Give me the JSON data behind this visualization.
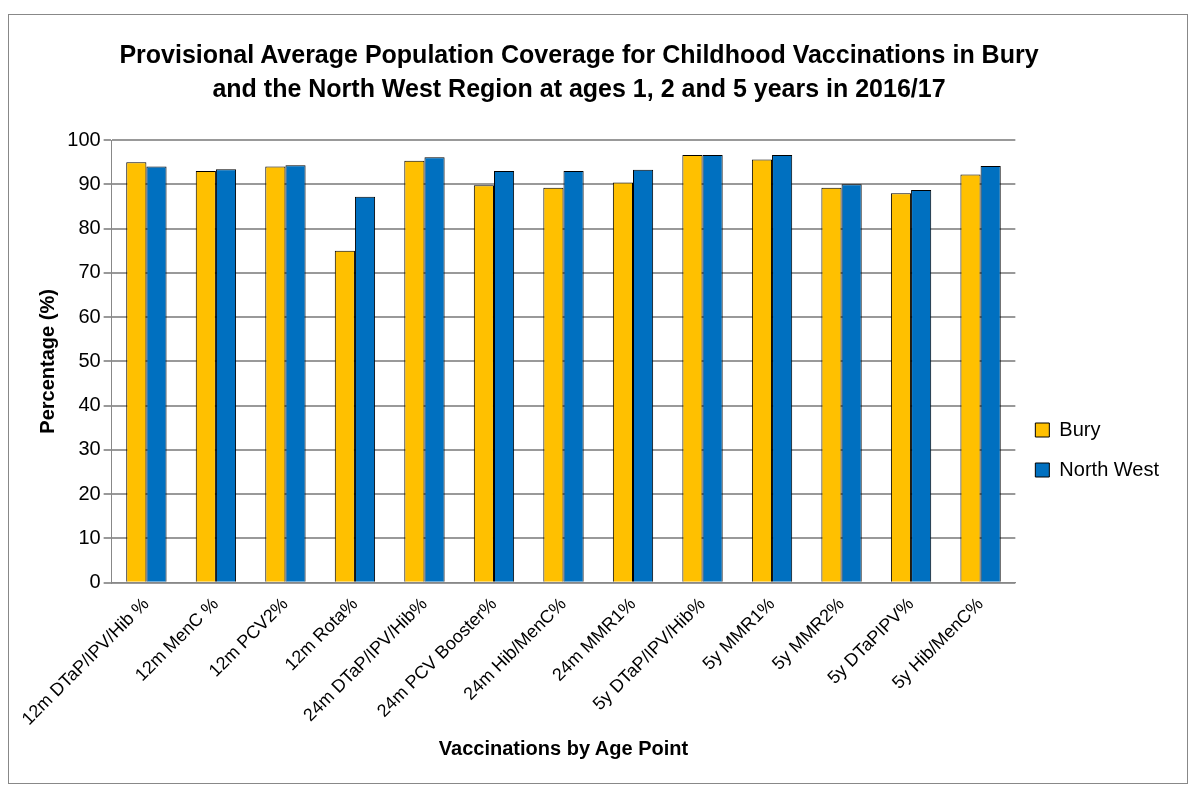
{
  "chart_data": {
    "type": "bar",
    "title": "Provisional Average Population Coverage for Childhood Vaccinations in Bury and the North West Region at ages 1, 2 and 5 years in 2016/17",
    "xlabel": "Vaccinations by Age Point",
    "ylabel": "Percentage (%)",
    "categories": [
      "12m DTaP/IPV/Hib %",
      "12m MenC %",
      "12m PCV2%",
      "12m Rota%",
      "24m DTaP/IPV/Hib%",
      "24m PCV Booster%",
      "24m Hib/MenC%",
      "24m MMR1%",
      "5y DTaP/IPV/Hib%",
      "5y MMR1%",
      "5y MMR2%",
      "5y DTaPIPV%",
      "5y Hib/MenC%"
    ],
    "series": [
      {
        "name": "Bury",
        "color": "#ffc000",
        "values": [
          95.0,
          93.0,
          94.0,
          75.0,
          95.3,
          89.8,
          89.2,
          90.4,
          96.6,
          95.6,
          89.2,
          88.0,
          92.2
        ]
      },
      {
        "name": "North West",
        "color": "#0070c0",
        "values": [
          94.0,
          93.4,
          94.3,
          87.2,
          96.1,
          93.0,
          93.0,
          93.3,
          96.6,
          96.6,
          90.0,
          88.7,
          94.1
        ]
      }
    ],
    "ylim": [
      0,
      100
    ],
    "yticks": [
      0,
      10,
      20,
      30,
      40,
      50,
      60,
      70,
      80,
      90,
      100
    ],
    "grid": "y",
    "legend": "right"
  }
}
